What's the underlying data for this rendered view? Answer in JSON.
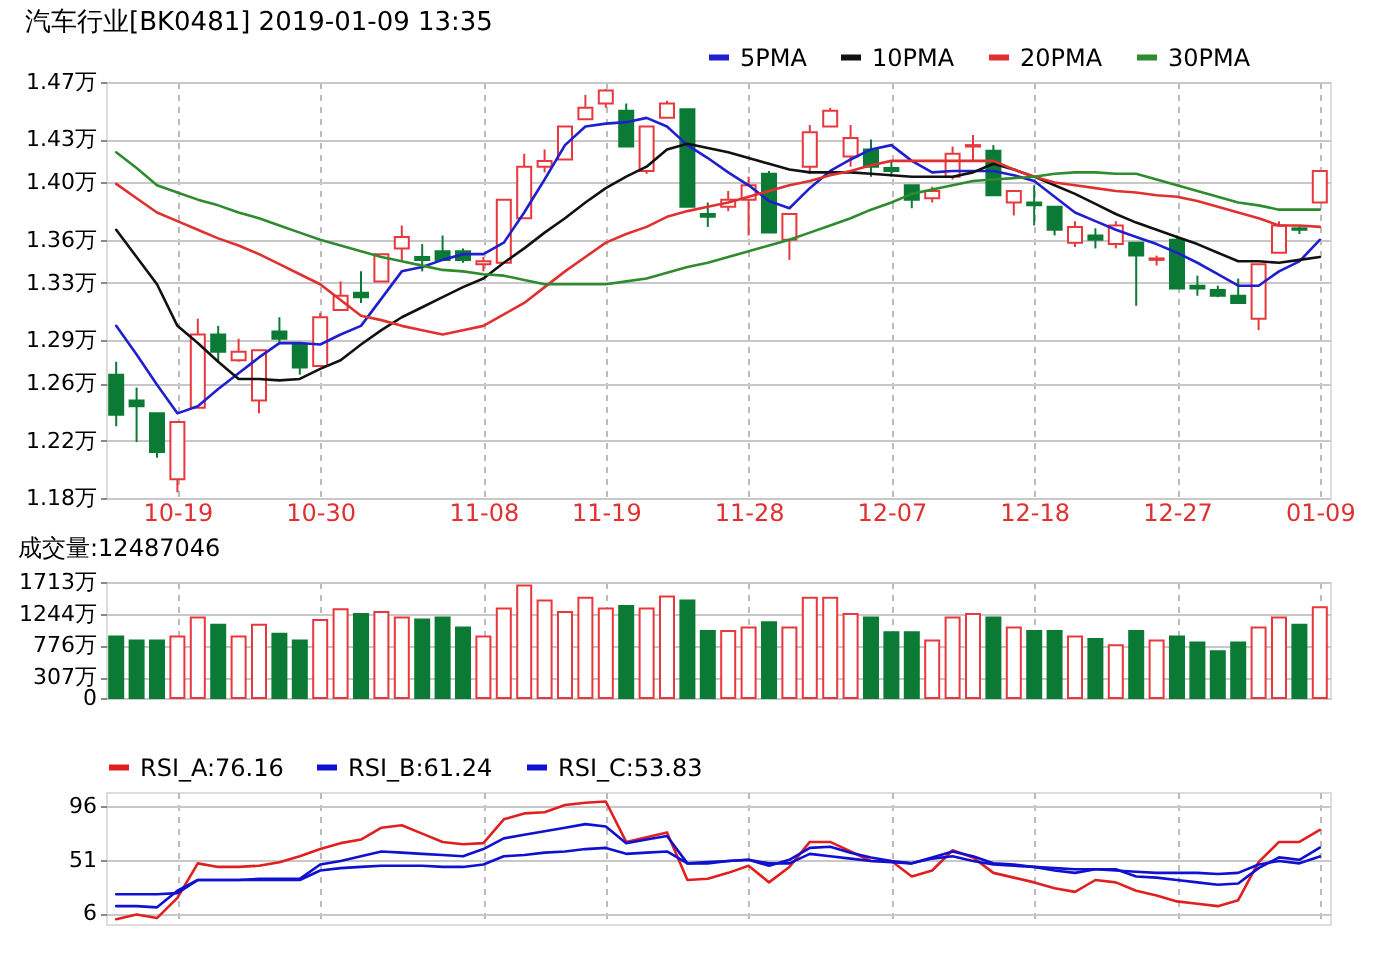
{
  "chart_data": [
    {
      "type": "candlestick",
      "title": "汽车行业[BK0481] 2019-01-09 13:35",
      "legend": "top",
      "grid": true,
      "categories": [
        null,
        null,
        null,
        "10-19",
        null,
        null,
        null,
        null,
        null,
        null,
        "10-30",
        null,
        null,
        null,
        null,
        null,
        null,
        null,
        "11-08",
        null,
        null,
        null,
        null,
        null,
        "11-19",
        null,
        null,
        null,
        null,
        null,
        null,
        "11-28",
        null,
        null,
        null,
        null,
        null,
        null,
        "12-07",
        null,
        null,
        null,
        null,
        null,
        null,
        "12-18",
        null,
        null,
        null,
        null,
        null,
        null,
        "12-27",
        null,
        null,
        null,
        null,
        null,
        null,
        "01-09"
      ],
      "ohlc": [
        [
          1.266,
          1.275,
          1.23,
          1.238
        ],
        [
          1.248,
          1.257,
          1.219,
          1.244
        ],
        [
          1.239,
          1.239,
          1.208,
          1.212
        ],
        [
          1.193,
          1.233,
          1.184,
          1.233
        ],
        [
          1.243,
          1.305,
          1.243,
          1.294
        ],
        [
          1.294,
          1.3,
          1.275,
          1.282
        ],
        [
          1.276,
          1.291,
          1.275,
          1.282
        ],
        [
          1.248,
          1.283,
          1.239,
          1.283
        ],
        [
          1.296,
          1.306,
          1.287,
          1.291
        ],
        [
          1.287,
          1.287,
          1.266,
          1.271
        ],
        [
          1.272,
          1.309,
          1.272,
          1.306
        ],
        [
          1.311,
          1.331,
          1.311,
          1.321
        ],
        [
          1.323,
          1.338,
          1.316,
          1.32
        ],
        [
          1.331,
          1.35,
          1.331,
          1.35
        ],
        [
          1.354,
          1.37,
          1.345,
          1.362
        ],
        [
          1.348,
          1.357,
          1.338,
          1.346
        ],
        [
          1.352,
          1.363,
          1.346,
          1.346
        ],
        [
          1.352,
          1.354,
          1.344,
          1.346
        ],
        [
          1.343,
          1.348,
          1.338,
          1.345
        ],
        [
          1.344,
          1.388,
          1.344,
          1.388
        ],
        [
          1.375,
          1.42,
          1.375,
          1.411
        ],
        [
          1.411,
          1.423,
          1.407,
          1.415
        ],
        [
          1.416,
          1.439,
          1.416,
          1.439
        ],
        [
          1.444,
          1.461,
          1.444,
          1.452
        ],
        [
          1.455,
          1.465,
          1.452,
          1.464
        ],
        [
          1.45,
          1.455,
          1.425,
          1.425
        ],
        [
          1.408,
          1.439,
          1.406,
          1.439
        ],
        [
          1.445,
          1.457,
          1.445,
          1.455
        ],
        [
          1.451,
          1.451,
          1.383,
          1.383
        ],
        [
          1.378,
          1.386,
          1.369,
          1.376
        ],
        [
          1.383,
          1.394,
          1.38,
          1.388
        ],
        [
          1.388,
          1.404,
          1.363,
          1.398
        ],
        [
          1.406,
          1.408,
          1.365,
          1.365
        ],
        [
          1.36,
          1.378,
          1.346,
          1.378
        ],
        [
          1.411,
          1.44,
          1.406,
          1.435
        ],
        [
          1.439,
          1.452,
          1.439,
          1.45
        ],
        [
          1.418,
          1.44,
          1.411,
          1.431
        ],
        [
          1.423,
          1.43,
          1.404,
          1.411
        ],
        [
          1.41,
          1.415,
          1.404,
          1.408
        ],
        [
          1.398,
          1.398,
          1.382,
          1.388
        ],
        [
          1.389,
          1.397,
          1.386,
          1.394
        ],
        [
          1.404,
          1.425,
          1.402,
          1.42
        ],
        [
          1.425,
          1.433,
          1.415,
          1.426
        ],
        [
          1.422,
          1.426,
          1.391,
          1.391
        ],
        [
          1.386,
          1.394,
          1.377,
          1.394
        ],
        [
          1.386,
          1.398,
          1.37,
          1.384
        ],
        [
          1.383,
          1.383,
          1.363,
          1.367
        ],
        [
          1.358,
          1.373,
          1.355,
          1.369
        ],
        [
          1.363,
          1.368,
          1.354,
          1.36
        ],
        [
          1.357,
          1.373,
          1.354,
          1.37
        ],
        [
          1.358,
          1.358,
          1.314,
          1.349
        ],
        [
          1.346,
          1.349,
          1.342,
          1.347
        ],
        [
          1.36,
          1.363,
          1.326,
          1.326
        ],
        [
          1.328,
          1.335,
          1.321,
          1.326
        ],
        [
          1.325,
          1.328,
          1.32,
          1.321
        ],
        [
          1.321,
          1.333,
          1.316,
          1.316
        ],
        [
          1.305,
          1.343,
          1.297,
          1.343
        ],
        [
          1.351,
          1.373,
          1.351,
          1.37
        ],
        [
          1.368,
          1.37,
          1.364,
          1.367
        ],
        [
          1.386,
          1.408,
          1.386,
          1.408
        ]
      ],
      "colors": [
        "#0b7a35",
        "#0b7a35",
        "#0b7a35",
        "#e8383d",
        "#e8383d",
        "#0b7a35",
        "#e8383d",
        "#e8383d",
        "#0b7a35",
        "#0b7a35",
        "#e8383d",
        "#e8383d",
        "#0b7a35",
        "#e8383d",
        "#e8383d",
        "#0b7a35",
        "#0b7a35",
        "#0b7a35",
        "#e8383d",
        "#e8383d",
        "#e8383d",
        "#e8383d",
        "#e8383d",
        "#e8383d",
        "#e8383d",
        "#0b7a35",
        "#e8383d",
        "#e8383d",
        "#0b7a35",
        "#0b7a35",
        "#e8383d",
        "#e8383d",
        "#0b7a35",
        "#e8383d",
        "#e8383d",
        "#e8383d",
        "#e8383d",
        "#0b7a35",
        "#0b7a35",
        "#0b7a35",
        "#e8383d",
        "#e8383d",
        "#e8383d",
        "#0b7a35",
        "#e8383d",
        "#0b7a35",
        "#0b7a35",
        "#e8383d",
        "#0b7a35",
        "#e8383d",
        "#0b7a35",
        "#e8383d",
        "#0b7a35",
        "#0b7a35",
        "#0b7a35",
        "#0b7a35",
        "#e8383d",
        "#e8383d",
        "#0b7a35",
        "#e8383d"
      ],
      "series": [
        {
          "name": "5PMA",
          "type": "line",
          "color": "#1f1fd0",
          "values": [
            1.3,
            1.28,
            1.259,
            1.239,
            1.244,
            1.256,
            1.267,
            1.278,
            1.288,
            1.288,
            1.287,
            1.294,
            1.3,
            1.319,
            1.338,
            1.341,
            1.346,
            1.35,
            1.35,
            1.358,
            1.379,
            1.402,
            1.426,
            1.439,
            1.441,
            1.442,
            1.445,
            1.439,
            1.426,
            1.417,
            1.407,
            1.398,
            1.387,
            1.382,
            1.396,
            1.408,
            1.416,
            1.423,
            1.426,
            1.415,
            1.407,
            1.408,
            1.408,
            1.408,
            1.405,
            1.401,
            1.39,
            1.379,
            1.373,
            1.367,
            1.362,
            1.357,
            1.351,
            1.344,
            1.336,
            1.328,
            1.328,
            1.338,
            1.345,
            1.36
          ]
        },
        {
          "name": "10PMA",
          "type": "line",
          "color": "#111111",
          "values": [
            1.367,
            1.348,
            1.329,
            1.3,
            1.288,
            1.275,
            1.263,
            1.263,
            1.262,
            1.263,
            1.27,
            1.276,
            1.287,
            1.297,
            1.306,
            1.313,
            1.32,
            1.327,
            1.333,
            1.344,
            1.354,
            1.365,
            1.375,
            1.386,
            1.396,
            1.404,
            1.411,
            1.423,
            1.427,
            1.424,
            1.421,
            1.417,
            1.413,
            1.409,
            1.407,
            1.407,
            1.407,
            1.406,
            1.405,
            1.404,
            1.404,
            1.404,
            1.407,
            1.413,
            1.409,
            1.404,
            1.398,
            1.392,
            1.385,
            1.378,
            1.372,
            1.367,
            1.362,
            1.357,
            1.351,
            1.345,
            1.345,
            1.344,
            1.346,
            1.348
          ]
        },
        {
          "name": "20PMA",
          "type": "line",
          "color": "#e03030",
          "values": [
            1.399,
            1.389,
            1.379,
            1.373,
            1.367,
            1.361,
            1.356,
            1.35,
            1.343,
            1.336,
            1.329,
            1.318,
            1.307,
            1.304,
            1.3,
            1.297,
            1.294,
            1.297,
            1.3,
            1.308,
            1.316,
            1.327,
            1.338,
            1.348,
            1.358,
            1.364,
            1.369,
            1.376,
            1.38,
            1.383,
            1.386,
            1.39,
            1.394,
            1.398,
            1.401,
            1.405,
            1.408,
            1.412,
            1.415,
            1.415,
            1.415,
            1.415,
            1.415,
            1.415,
            1.409,
            1.404,
            1.4,
            1.398,
            1.396,
            1.394,
            1.393,
            1.391,
            1.39,
            1.387,
            1.383,
            1.379,
            1.375,
            1.37,
            1.37,
            1.369
          ]
        },
        {
          "name": "30PMA",
          "type": "line",
          "color": "#2e8b2e",
          "values": [
            1.421,
            1.41,
            1.398,
            1.393,
            1.388,
            1.384,
            1.379,
            1.375,
            1.37,
            1.365,
            1.36,
            1.356,
            1.352,
            1.348,
            1.345,
            1.342,
            1.339,
            1.338,
            1.336,
            1.335,
            1.332,
            1.329,
            1.329,
            1.329,
            1.329,
            1.331,
            1.333,
            1.337,
            1.341,
            1.344,
            1.348,
            1.352,
            1.356,
            1.36,
            1.365,
            1.37,
            1.375,
            1.381,
            1.386,
            1.392,
            1.395,
            1.398,
            1.401,
            1.402,
            1.403,
            1.404,
            1.406,
            1.407,
            1.407,
            1.406,
            1.406,
            1.402,
            1.398,
            1.394,
            1.39,
            1.386,
            1.384,
            1.381,
            1.381,
            1.381
          ]
        }
      ],
      "ylim": [
        1.18,
        1.47
      ],
      "yticks": [
        {
          "value": 1.18,
          "label": "1.18万"
        },
        {
          "value": 1.22,
          "label": "1.22万"
        },
        {
          "value": 1.26,
          "label": "1.26万"
        },
        {
          "value": 1.29,
          "label": "1.29万"
        },
        {
          "value": 1.33,
          "label": "1.33万"
        },
        {
          "value": 1.36,
          "label": "1.36万"
        },
        {
          "value": 1.4,
          "label": "1.40万"
        },
        {
          "value": 1.43,
          "label": "1.43万"
        },
        {
          "value": 1.47,
          "label": "1.47万"
        }
      ]
    },
    {
      "type": "bar",
      "title": "成交量:12487046",
      "grid": true,
      "tick_labels": "y",
      "categories": [
        null,
        null,
        null,
        null,
        null,
        null,
        null,
        null,
        null,
        null,
        null,
        null,
        null,
        null,
        null,
        null,
        null,
        null,
        null,
        null,
        null,
        null,
        null,
        null,
        null,
        null,
        null,
        null,
        null,
        null,
        null,
        null,
        null,
        null,
        null,
        null,
        null,
        null,
        null,
        null,
        null,
        null,
        null,
        null,
        null,
        null,
        null,
        null,
        null,
        null,
        null,
        null,
        null,
        null,
        null,
        null,
        null,
        null,
        null,
        null
      ],
      "values": [
        910,
        850,
        850,
        910,
        1190,
        1080,
        910,
        1080,
        950,
        850,
        1150,
        1310,
        1240,
        1270,
        1190,
        1160,
        1190,
        1040,
        910,
        1320,
        1660,
        1440,
        1270,
        1480,
        1320,
        1360,
        1320,
        1500,
        1440,
        990,
        990,
        1040,
        1120,
        1040,
        1480,
        1480,
        1240,
        1190,
        970,
        970,
        850,
        1190,
        1240,
        1190,
        1040,
        990,
        990,
        910,
        870,
        780,
        990,
        850,
        910,
        820,
        690,
        820,
        1040,
        1190,
        1080,
        1340
      ],
      "colors": [
        "#0b7a35",
        "#0b7a35",
        "#0b7a35",
        "#e8383d",
        "#e8383d",
        "#0b7a35",
        "#e8383d",
        "#e8383d",
        "#0b7a35",
        "#0b7a35",
        "#e8383d",
        "#e8383d",
        "#0b7a35",
        "#e8383d",
        "#e8383d",
        "#0b7a35",
        "#0b7a35",
        "#0b7a35",
        "#e8383d",
        "#e8383d",
        "#e8383d",
        "#e8383d",
        "#e8383d",
        "#e8383d",
        "#e8383d",
        "#0b7a35",
        "#e8383d",
        "#e8383d",
        "#0b7a35",
        "#0b7a35",
        "#e8383d",
        "#e8383d",
        "#0b7a35",
        "#e8383d",
        "#e8383d",
        "#e8383d",
        "#e8383d",
        "#0b7a35",
        "#0b7a35",
        "#0b7a35",
        "#e8383d",
        "#e8383d",
        "#e8383d",
        "#0b7a35",
        "#e8383d",
        "#0b7a35",
        "#0b7a35",
        "#e8383d",
        "#0b7a35",
        "#e8383d",
        "#0b7a35",
        "#e8383d",
        "#0b7a35",
        "#0b7a35",
        "#0b7a35",
        "#0b7a35",
        "#e8383d",
        "#e8383d",
        "#0b7a35",
        "#e8383d"
      ],
      "ylim": [
        0,
        1713
      ],
      "yticks": [
        0,
        {
          "value": 307,
          "label": "307万"
        },
        {
          "value": 776,
          "label": "776万"
        },
        {
          "value": 1244,
          "label": "1244万"
        },
        {
          "value": 1713,
          "label": "1713万"
        }
      ]
    },
    {
      "type": "line",
      "legend": "top",
      "grid": true,
      "tick_labels": "y",
      "categories": [
        null,
        null,
        null,
        null,
        null,
        null,
        null,
        null,
        null,
        null,
        null,
        null,
        null,
        null,
        null,
        null,
        null,
        null,
        null,
        null,
        null,
        null,
        null,
        null,
        null,
        null,
        null,
        null,
        null,
        null,
        null,
        null,
        null,
        null,
        null,
        null,
        null,
        null,
        null,
        null,
        null,
        null,
        null,
        null,
        null,
        null,
        null,
        null,
        null,
        null,
        null,
        null,
        null,
        null,
        null,
        null,
        null,
        null,
        null,
        null
      ],
      "series": [
        {
          "name": "RSI_A:76.16",
          "color": "#e02020",
          "values": [
            1,
            5,
            2,
            19,
            48,
            45,
            45,
            46,
            49,
            54,
            60,
            65,
            68,
            78,
            80,
            73,
            66,
            64,
            65,
            85,
            90,
            91,
            97,
            99,
            100,
            66,
            70,
            74,
            34,
            35,
            40,
            46,
            32,
            45,
            66,
            66,
            58,
            50,
            50,
            37,
            42,
            59,
            53,
            40,
            36,
            32,
            27,
            24,
            34,
            32,
            25,
            21,
            16,
            14,
            12,
            17,
            49,
            66,
            66,
            76.16
          ]
        },
        {
          "name": "RSI_B:61.24",
          "color": "#1010d0",
          "values": [
            12,
            12,
            11,
            25,
            34,
            34,
            34,
            35,
            35,
            35,
            47,
            50,
            54,
            58,
            57,
            56,
            55,
            54,
            60,
            69,
            72,
            75,
            78,
            81,
            79,
            65,
            68,
            71,
            48,
            48,
            50,
            51,
            46,
            51,
            61,
            62,
            57,
            53,
            50,
            48,
            53,
            58,
            54,
            48,
            47,
            45,
            42,
            40,
            43,
            43,
            37,
            36,
            34,
            32,
            30,
            31,
            44,
            53,
            51,
            61.24
          ]
        },
        {
          "name": "RSI_C:53.83",
          "color": "#1010d0",
          "values": [
            22,
            22,
            22,
            23,
            34,
            34,
            34,
            34,
            34,
            34,
            42,
            44,
            45,
            46,
            46,
            46,
            45,
            45,
            47,
            54,
            55,
            57,
            58,
            60,
            61,
            56,
            57,
            58,
            48,
            49,
            50,
            51,
            48,
            48,
            56,
            54,
            52,
            50,
            49,
            48,
            52,
            54,
            50,
            47,
            46,
            45,
            44,
            43,
            43,
            42,
            41,
            40,
            40,
            40,
            39,
            40,
            47,
            50,
            48,
            53.83
          ]
        }
      ],
      "ylim": [
        -3,
        108
      ],
      "yticks": [
        6,
        51,
        96
      ]
    }
  ]
}
